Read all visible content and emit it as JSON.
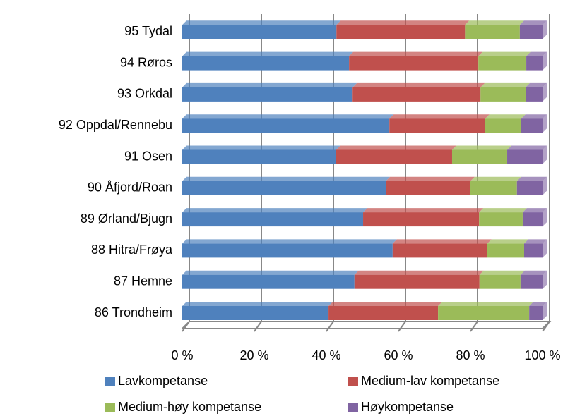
{
  "chart_data": {
    "type": "stacked-barh",
    "categories": [
      "86 Trondheim",
      "87 Hemne",
      "88 Hitra/Frøya",
      "89 Ørland/Bjugn",
      "90 Åfjord/Roan",
      "91 Osen",
      "92 Oppdal/Rennebu",
      "93 Orkdal",
      "94 Røros",
      "95 Tydal"
    ],
    "series": [
      {
        "name": "Lavkompetanse",
        "color": "#4f81bd",
        "values": [
          40.6,
          47.8,
          58.4,
          50.2,
          56.5,
          42.7,
          57.5,
          47.3,
          46.3,
          42.8
        ]
      },
      {
        "name": "Medium-lav kompetanse",
        "color": "#c0504d",
        "values": [
          30.4,
          34.7,
          26.3,
          32.2,
          23.5,
          32.2,
          26.6,
          35.5,
          35.9,
          35.7
        ]
      },
      {
        "name": "Medium-høy kompetanse",
        "color": "#9bbb59",
        "values": [
          25.3,
          11.4,
          10.2,
          12.1,
          12.9,
          15.3,
          10.0,
          12.5,
          13.3,
          15.2
        ]
      },
      {
        "name": "Høykompetanse",
        "color": "#8064a2",
        "values": [
          3.7,
          6.1,
          5.1,
          5.5,
          7.1,
          9.8,
          5.9,
          4.7,
          4.5,
          6.3
        ]
      }
    ],
    "xlim": [
      0,
      100
    ],
    "xticks": [
      {
        "value": 0,
        "label": "0 %"
      },
      {
        "value": 20,
        "label": "20 %"
      },
      {
        "value": 40,
        "label": "40 %"
      },
      {
        "value": 60,
        "label": "60 %"
      },
      {
        "value": 80,
        "label": "80 %"
      },
      {
        "value": 100,
        "label": "100 %"
      }
    ],
    "grid": true
  }
}
